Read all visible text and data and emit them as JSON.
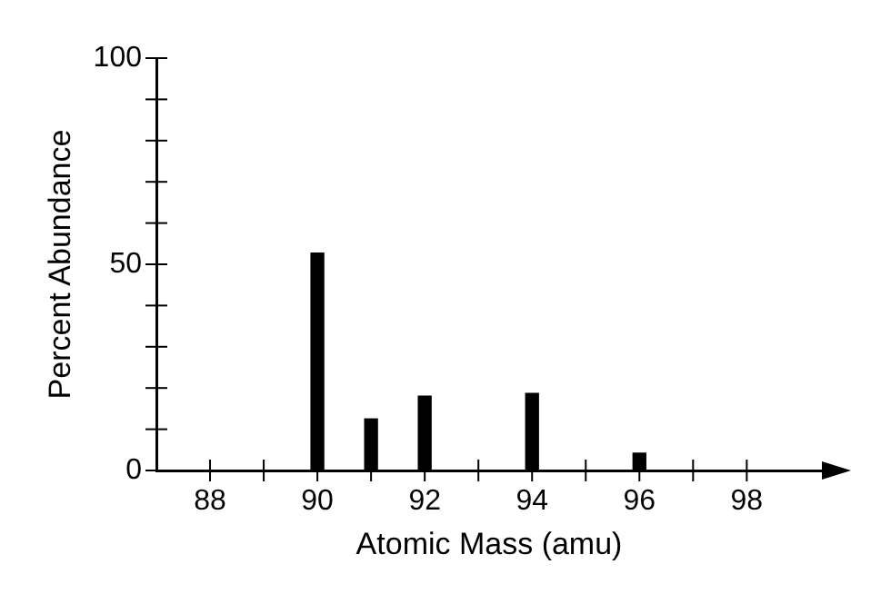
{
  "chart_data": {
    "type": "bar",
    "xlabel": "Atomic Mass (amu)",
    "ylabel": "Percent Abundance",
    "x": [
      90,
      91,
      92,
      94,
      96
    ],
    "values": [
      52.7,
      12.5,
      18,
      18.7,
      4.2
    ],
    "color": "#000000",
    "xlim": [
      87,
      99.4
    ],
    "xticks": [
      88,
      {
        "value": 89,
        "label": null
      },
      90,
      {
        "value": 91,
        "label": null
      },
      92,
      {
        "value": 93,
        "label": null
      },
      94,
      {
        "value": 95,
        "label": null
      },
      96,
      {
        "value": 97,
        "label": null
      },
      98
    ],
    "ylim": [
      0,
      100
    ],
    "yticks": [
      0,
      {
        "value": 10,
        "label": null
      },
      {
        "value": 20,
        "label": null
      },
      {
        "value": 30,
        "label": null
      },
      {
        "value": 40,
        "label": null
      },
      50,
      {
        "value": 60,
        "label": null
      },
      {
        "value": 70,
        "label": null
      },
      {
        "value": 80,
        "label": null
      },
      {
        "value": 90,
        "label": null
      },
      100
    ],
    "grid": false,
    "legend": false
  }
}
